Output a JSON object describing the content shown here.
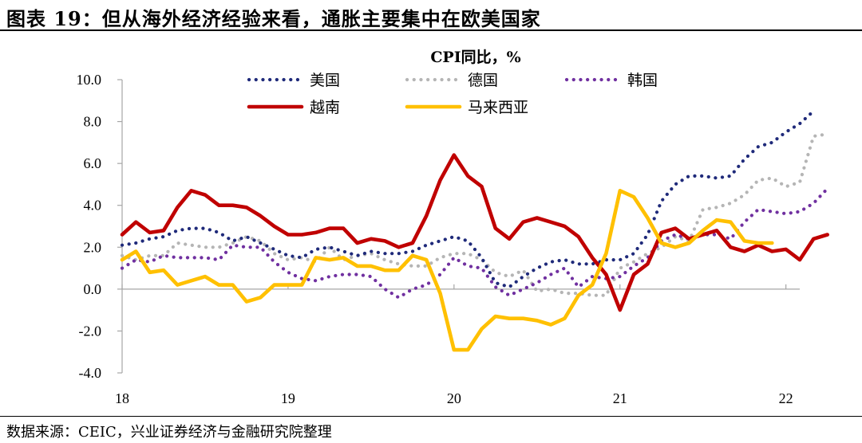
{
  "figure": {
    "title": "图表 19：但从海外经济经验来看，通胀主要集中在欧美国家",
    "source": "数据来源：CEIC，兴业证券经济与金融研究院整理"
  },
  "chart_data": {
    "type": "line",
    "title": "CPI同比，%",
    "xlabel": "",
    "ylabel": "",
    "ylim": [
      -4.0,
      10.0
    ],
    "yticks": [
      "10.0",
      "8.0",
      "6.0",
      "4.0",
      "2.0",
      "0.0",
      "-2.0",
      "-4.0"
    ],
    "ytick_values": [
      10,
      8,
      6,
      4,
      2,
      0,
      -2,
      -4
    ],
    "xticks": [
      "18",
      "19",
      "20",
      "21",
      "22"
    ],
    "xtick_months": [
      0,
      12,
      24,
      36,
      48
    ],
    "x_start": "2018-01",
    "grid": false,
    "legend_position": "top-center",
    "series": [
      {
        "name": "美国",
        "color": "#1f2a7a",
        "style": "dotted",
        "values": [
          2.1,
          2.2,
          2.4,
          2.5,
          2.8,
          2.9,
          2.9,
          2.7,
          2.3,
          2.5,
          2.2,
          1.9,
          1.6,
          1.5,
          1.9,
          2.0,
          1.8,
          1.6,
          1.8,
          1.7,
          1.7,
          1.8,
          2.1,
          2.3,
          2.5,
          2.3,
          1.5,
          0.3,
          0.1,
          0.6,
          1.0,
          1.3,
          1.4,
          1.2,
          1.2,
          1.4,
          1.4,
          1.7,
          2.6,
          4.2,
          5.0,
          5.4,
          5.4,
          5.3,
          5.4,
          6.2,
          6.8,
          7.0,
          7.5,
          7.9,
          8.5
        ]
      },
      {
        "name": "德国",
        "color": "#b5b5b5",
        "style": "dotted",
        "values": [
          1.6,
          1.4,
          1.6,
          1.6,
          2.2,
          2.1,
          2.0,
          2.0,
          2.2,
          2.5,
          2.3,
          1.7,
          1.4,
          1.5,
          1.3,
          2.0,
          1.4,
          1.6,
          1.7,
          1.4,
          1.2,
          1.1,
          1.1,
          1.5,
          1.7,
          1.7,
          1.4,
          0.8,
          0.6,
          0.9,
          -0.1,
          0.0,
          -0.2,
          -0.2,
          -0.3,
          -0.3,
          1.0,
          1.3,
          1.7,
          2.0,
          2.5,
          2.3,
          3.8,
          3.9,
          4.1,
          4.5,
          5.2,
          5.3,
          4.9,
          5.1,
          7.3,
          7.4
        ]
      },
      {
        "name": "韩国",
        "color": "#7030a0",
        "style": "dotted",
        "values": [
          1.0,
          1.4,
          1.3,
          1.6,
          1.5,
          1.5,
          1.5,
          1.4,
          2.1,
          2.0,
          2.0,
          1.3,
          0.8,
          0.5,
          0.4,
          0.6,
          0.7,
          0.7,
          0.6,
          0.0,
          -0.4,
          0.0,
          0.2,
          0.7,
          1.5,
          1.1,
          1.0,
          0.1,
          -0.3,
          0.0,
          0.3,
          0.7,
          1.0,
          0.1,
          0.6,
          0.5,
          0.6,
          1.1,
          1.5,
          2.3,
          2.6,
          2.4,
          2.6,
          2.6,
          2.4,
          3.2,
          3.8,
          3.7,
          3.6,
          3.7,
          4.1,
          4.8
        ]
      },
      {
        "name": "越南",
        "color": "#c00000",
        "style": "solid",
        "values": [
          2.6,
          3.2,
          2.7,
          2.8,
          3.9,
          4.7,
          4.5,
          4.0,
          4.0,
          3.9,
          3.5,
          3.0,
          2.6,
          2.6,
          2.7,
          2.9,
          2.9,
          2.2,
          2.4,
          2.3,
          2.0,
          2.2,
          3.5,
          5.2,
          6.4,
          5.4,
          4.9,
          2.9,
          2.4,
          3.2,
          3.4,
          3.2,
          3.0,
          2.5,
          1.5,
          0.7,
          -1.0,
          0.7,
          1.2,
          2.7,
          2.9,
          2.4,
          2.6,
          2.8,
          2.0,
          1.8,
          2.1,
          1.8,
          1.9,
          1.4,
          2.4,
          2.6
        ]
      },
      {
        "name": "马来西亚",
        "color": "#ffc000",
        "style": "solid",
        "values": [
          1.4,
          1.8,
          0.8,
          0.9,
          0.2,
          0.4,
          0.6,
          0.2,
          0.2,
          -0.6,
          -0.4,
          0.2,
          0.2,
          0.2,
          1.5,
          1.4,
          1.5,
          1.1,
          1.1,
          0.9,
          0.9,
          1.6,
          1.4,
          -0.2,
          -2.9,
          -2.9,
          -1.9,
          -1.3,
          -1.4,
          -1.4,
          -1.5,
          -1.7,
          -1.4,
          -0.3,
          0.2,
          1.7,
          4.7,
          4.4,
          3.4,
          2.2,
          2.0,
          2.2,
          2.8,
          3.3,
          3.2,
          2.3,
          2.2,
          2.2
        ]
      }
    ]
  }
}
